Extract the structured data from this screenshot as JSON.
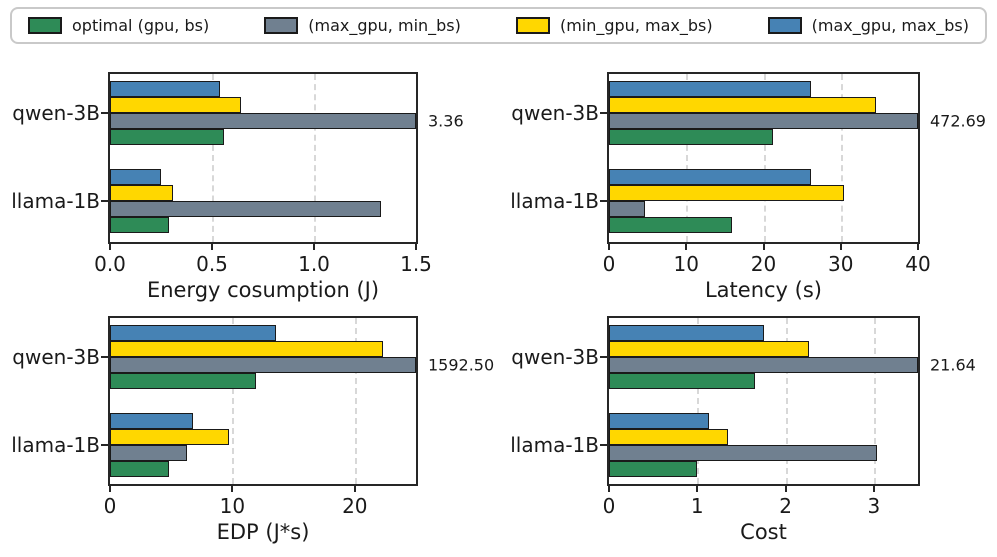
{
  "legend": {
    "items": [
      {
        "label": "optimal (gpu, bs)",
        "color": "#2E8B57"
      },
      {
        "label": "(max_gpu, min_bs)",
        "color": "#708090"
      },
      {
        "label": "(min_gpu, max_bs)",
        "color": "#FFD700"
      },
      {
        "label": "(max_gpu, max_bs)",
        "color": "#4682B4"
      }
    ]
  },
  "display": {
    "series_order_top_to_bottom": [
      "(max_gpu, max_bs)",
      "(min_gpu, max_bs)",
      "(max_gpu, min_bs)",
      "optimal (gpu, bs)"
    ],
    "grid_color": "#d8d8d8",
    "bar_edge_color": "#1a1a1a",
    "spine_color": "#262626"
  },
  "chart_data": [
    {
      "id": "energy",
      "type": "bar",
      "orientation": "horizontal",
      "xlabel": "Energy cosumption (J)",
      "xlim": [
        0,
        1.5
      ],
      "xticks": [
        0,
        0.5,
        1.0,
        1.5
      ],
      "xtick_labels": [
        "0.0",
        "0.5",
        "1.0",
        "1.5"
      ],
      "categories": [
        "qwen-3B",
        "llama-1B"
      ],
      "grid": "dashed-vertical",
      "series": [
        {
          "name": "optimal (gpu, bs)",
          "color": "#2E8B57",
          "values": [
            0.56,
            0.29
          ]
        },
        {
          "name": "(max_gpu, min_bs)",
          "color": "#708090",
          "values": [
            3.36,
            1.33
          ]
        },
        {
          "name": "(min_gpu, max_bs)",
          "color": "#FFD700",
          "values": [
            0.64,
            0.31
          ]
        },
        {
          "name": "(max_gpu, max_bs)",
          "color": "#4682B4",
          "values": [
            0.54,
            0.25
          ]
        }
      ],
      "clipped_annotation": {
        "text": "3.36",
        "series": "(max_gpu, min_bs)",
        "category": "qwen-3B"
      }
    },
    {
      "id": "latency",
      "type": "bar",
      "orientation": "horizontal",
      "xlabel": "Latency (s)",
      "xlim": [
        0,
        40
      ],
      "xticks": [
        0,
        10,
        20,
        30,
        40
      ],
      "xtick_labels": [
        "0",
        "10",
        "20",
        "30",
        "40"
      ],
      "categories": [
        "qwen-3B",
        "llama-1B"
      ],
      "grid": "dashed-vertical",
      "series": [
        {
          "name": "optimal (gpu, bs)",
          "color": "#2E8B57",
          "values": [
            21.2,
            15.9
          ]
        },
        {
          "name": "(max_gpu, min_bs)",
          "color": "#708090",
          "values": [
            472.69,
            4.6
          ]
        },
        {
          "name": "(min_gpu, max_bs)",
          "color": "#FFD700",
          "values": [
            34.5,
            30.4
          ]
        },
        {
          "name": "(max_gpu, max_bs)",
          "color": "#4682B4",
          "values": [
            26.2,
            26.1
          ]
        }
      ],
      "clipped_annotation": {
        "text": "472.69",
        "series": "(max_gpu, min_bs)",
        "category": "qwen-3B"
      }
    },
    {
      "id": "edp",
      "type": "bar",
      "orientation": "horizontal",
      "xlabel": "EDP (J*s)",
      "xlim": [
        0,
        25
      ],
      "xticks": [
        0,
        10,
        20
      ],
      "xtick_labels": [
        "0",
        "10",
        "20"
      ],
      "categories": [
        "qwen-3B",
        "llama-1B"
      ],
      "grid": "dashed-vertical",
      "series": [
        {
          "name": "optimal (gpu, bs)",
          "color": "#2E8B57",
          "values": [
            11.9,
            4.8
          ]
        },
        {
          "name": "(max_gpu, min_bs)",
          "color": "#708090",
          "values": [
            1592.5,
            6.3
          ]
        },
        {
          "name": "(min_gpu, max_bs)",
          "color": "#FFD700",
          "values": [
            22.3,
            9.7
          ]
        },
        {
          "name": "(max_gpu, max_bs)",
          "color": "#4682B4",
          "values": [
            13.6,
            6.8
          ]
        }
      ],
      "clipped_annotation": {
        "text": "1592.50",
        "series": "(max_gpu, min_bs)",
        "category": "qwen-3B"
      }
    },
    {
      "id": "cost",
      "type": "bar",
      "orientation": "horizontal",
      "xlabel": "Cost",
      "xlim": [
        0,
        3.5
      ],
      "xticks": [
        0,
        1,
        2,
        3
      ],
      "xtick_labels": [
        "0",
        "1",
        "2",
        "3"
      ],
      "categories": [
        "qwen-3B",
        "llama-1B"
      ],
      "grid": "dashed-vertical",
      "series": [
        {
          "name": "optimal (gpu, bs)",
          "color": "#2E8B57",
          "values": [
            1.65,
            1.0
          ]
        },
        {
          "name": "(max_gpu, min_bs)",
          "color": "#708090",
          "values": [
            21.64,
            3.03
          ]
        },
        {
          "name": "(min_gpu, max_bs)",
          "color": "#FFD700",
          "values": [
            2.27,
            1.35
          ]
        },
        {
          "name": "(max_gpu, max_bs)",
          "color": "#4682B4",
          "values": [
            1.75,
            1.13
          ]
        }
      ],
      "clipped_annotation": {
        "text": "21.64",
        "series": "(max_gpu, min_bs)",
        "category": "qwen-3B"
      }
    }
  ]
}
